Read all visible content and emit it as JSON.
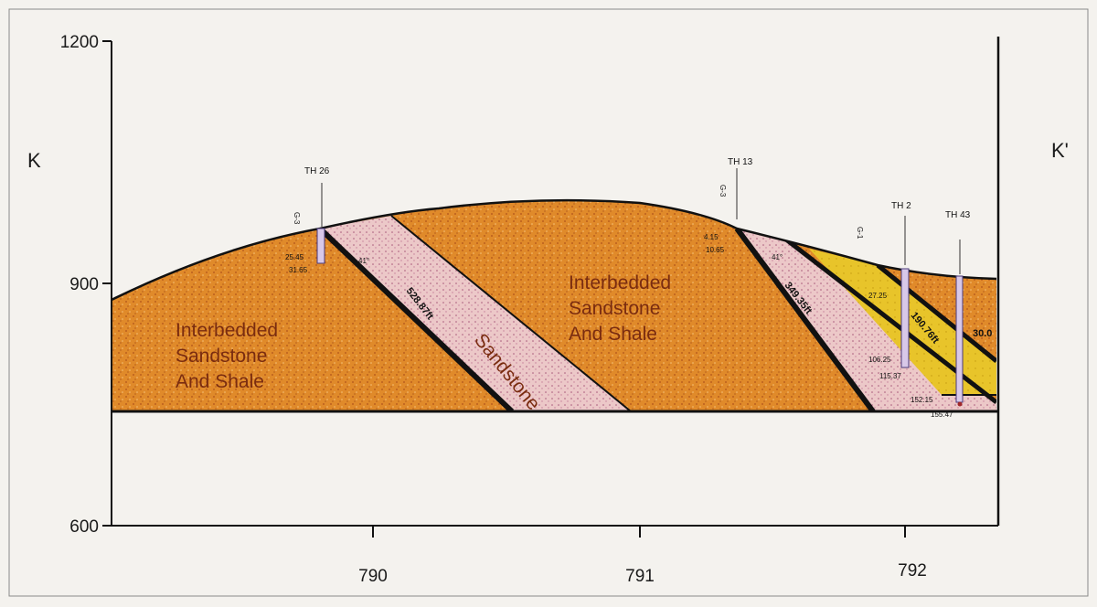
{
  "axes": {
    "y_ticks": [
      "1200",
      "900",
      "600"
    ],
    "x_ticks": [
      "790",
      "791",
      "792"
    ],
    "left_label": "K",
    "right_label": "K'"
  },
  "units": {
    "left": [
      "Interbedded",
      "Sandstone",
      "And Shale"
    ],
    "middle": [
      "Interbedded",
      "Sandstone",
      "And Shale"
    ],
    "sandstone": "Sandstone"
  },
  "boreholes": [
    {
      "name": "TH 26",
      "top_depth": "25.45",
      "bottom_depth": "31.65",
      "dip": "41°"
    },
    {
      "name": "TH 13",
      "top_depth": "4.15",
      "bottom_depth": "10.65",
      "dip": "41°"
    },
    {
      "name": "TH 2",
      "depths": [
        "27.25",
        "106.25",
        "115.37",
        "152.15"
      ]
    },
    {
      "name": "TH 43",
      "depths": [
        "155.47"
      ]
    }
  ],
  "thickness_labels": [
    "528.87ft",
    "349.35ft",
    "190.76ft",
    "30.0"
  ],
  "fault_marks": [
    "G-3",
    "G-3",
    "G-1"
  ],
  "colors": {
    "interbedded": "#e08a2a",
    "sandstone": "#ecc8c8",
    "yellow_bed": "#e8c42a",
    "contact": "#111111"
  }
}
